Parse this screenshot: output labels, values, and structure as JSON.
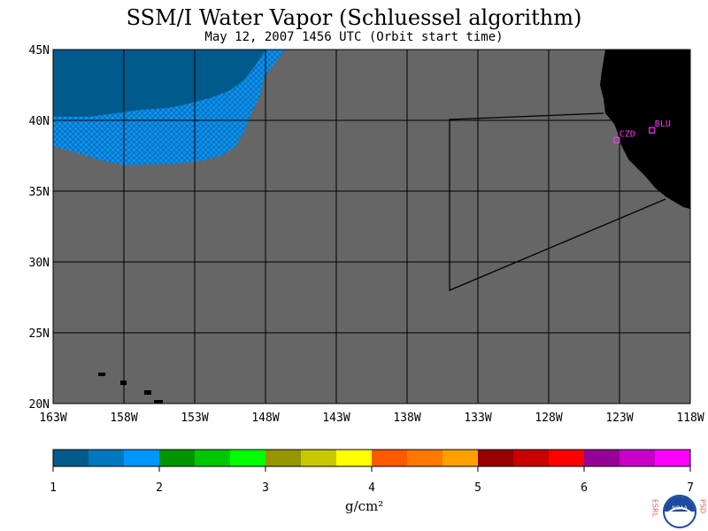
{
  "header": {
    "title": "SSM/I Water Vapor (Schluessel algorithm)",
    "subtitle": "May 12, 2007  1456 UTC  (Orbit start time)"
  },
  "map": {
    "lat_labels": [
      "45N",
      "40N",
      "35N",
      "30N",
      "25N",
      "20N"
    ],
    "lat_values": [
      45,
      40,
      35,
      30,
      25,
      20
    ],
    "lon_labels": [
      "163W",
      "158W",
      "153W",
      "148W",
      "143W",
      "138W",
      "133W",
      "128W",
      "123W",
      "118W"
    ],
    "lon_values": [
      -163,
      -158,
      -153,
      -148,
      -143,
      -138,
      -133,
      -128,
      -123,
      -118
    ],
    "stations": [
      {
        "label": "CZD",
        "lat": 38.6,
        "lon": -123.2
      },
      {
        "label": "BLU",
        "lat": 39.3,
        "lon": -120.7
      }
    ],
    "land_color": "#000000",
    "nodata_color": "#666666",
    "station_color": "#ff33ff"
  },
  "colorbar": {
    "tick_labels": [
      "1",
      "2",
      "3",
      "4",
      "5",
      "6",
      "7"
    ],
    "unit": "g/cm²",
    "colors": [
      "#005a8c",
      "#0078c0",
      "#0096ff",
      "#009600",
      "#00c800",
      "#00ff00",
      "#969600",
      "#c8c800",
      "#ffff00",
      "#ff5a00",
      "#ff7800",
      "#ffa000",
      "#960000",
      "#c80000",
      "#ff0000",
      "#960096",
      "#c800c8",
      "#ff00ff"
    ]
  },
  "logo": {
    "left_text": "ESRL",
    "right_text": "PSD",
    "center_text": "NOAA"
  }
}
